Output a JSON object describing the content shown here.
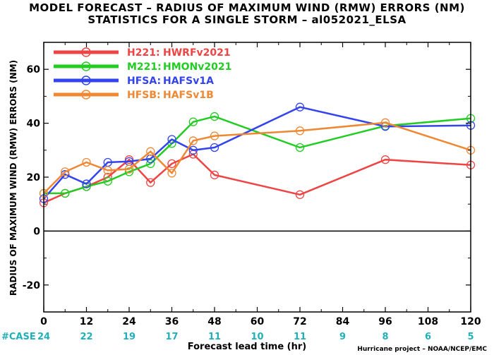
{
  "chart_data": {
    "type": "line",
    "title": "MODEL FORECAST – RADIUS OF MAXIMUM WIND (RMW) ERRORS (NM)",
    "subtitle": "STATISTICS FOR A SINGLE STORM – al052021_ELSA",
    "xlabel": "Forecast lead time (hr)",
    "ylabel": "RADIUS OF MAXIMUM WIND (RMW) ERRORS (NM)",
    "xlim": [
      0,
      120
    ],
    "ylim": [
      -30,
      70
    ],
    "xticks": [
      0,
      12,
      24,
      36,
      48,
      60,
      72,
      84,
      96,
      108,
      120
    ],
    "yticks": [
      -20,
      0,
      20,
      40,
      60
    ],
    "ytick_labels": [
      "-20",
      "0",
      "20",
      "40",
      "60"
    ],
    "legend_position": "top-left",
    "series": [
      {
        "name": "H221:",
        "model": "HWRFv2021",
        "color": "#ee4444",
        "x": [
          0,
          6,
          12,
          18,
          24,
          30,
          36,
          42,
          48,
          72,
          96,
          120
        ],
        "y": [
          10.5,
          14,
          16.5,
          20,
          26.5,
          18,
          25,
          28.5,
          20.8,
          13.5,
          26.5,
          24.5
        ]
      },
      {
        "name": "M221:",
        "model": "HMONv2021",
        "color": "#22cc22",
        "x": [
          0,
          6,
          12,
          18,
          24,
          30,
          36,
          42,
          48,
          72,
          96,
          120
        ],
        "y": [
          14,
          14,
          16.5,
          18.5,
          22,
          25,
          32.5,
          40.5,
          42.5,
          31,
          39,
          41.8
        ]
      },
      {
        "name": "HFSA:",
        "model": "HAFSv1A",
        "color": "#3344ee",
        "x": [
          0,
          6,
          12,
          18,
          24,
          30,
          36,
          42,
          48,
          72,
          96,
          120
        ],
        "y": [
          12,
          21,
          17.5,
          25.5,
          25.8,
          26.8,
          34,
          30,
          31,
          46,
          38.8,
          39.2
        ]
      },
      {
        "name": "HFSB:",
        "model": "HAFSv1B",
        "color": "#ee8833",
        "x": [
          0,
          6,
          12,
          18,
          24,
          30,
          36,
          42,
          48,
          72,
          96,
          120
        ],
        "y": [
          14,
          22,
          25.5,
          22.5,
          23,
          29.5,
          21.5,
          33.5,
          35.3,
          37.2,
          40.2,
          30
        ]
      }
    ],
    "case_label": "#CASE",
    "case_counts": [
      {
        "x": 0,
        "n": "24"
      },
      {
        "x": 12,
        "n": "22"
      },
      {
        "x": 24,
        "n": "19"
      },
      {
        "x": 36,
        "n": "17"
      },
      {
        "x": 48,
        "n": "11"
      },
      {
        "x": 60,
        "n": "10"
      },
      {
        "x": 72,
        "n": "11"
      },
      {
        "x": 84,
        "n": "9"
      },
      {
        "x": 96,
        "n": "8"
      },
      {
        "x": 108,
        "n": "6"
      },
      {
        "x": 120,
        "n": "5"
      }
    ],
    "case_color": "#20b0b8"
  },
  "credit": "Hurricane project – NOAA/NCEP/EMC"
}
